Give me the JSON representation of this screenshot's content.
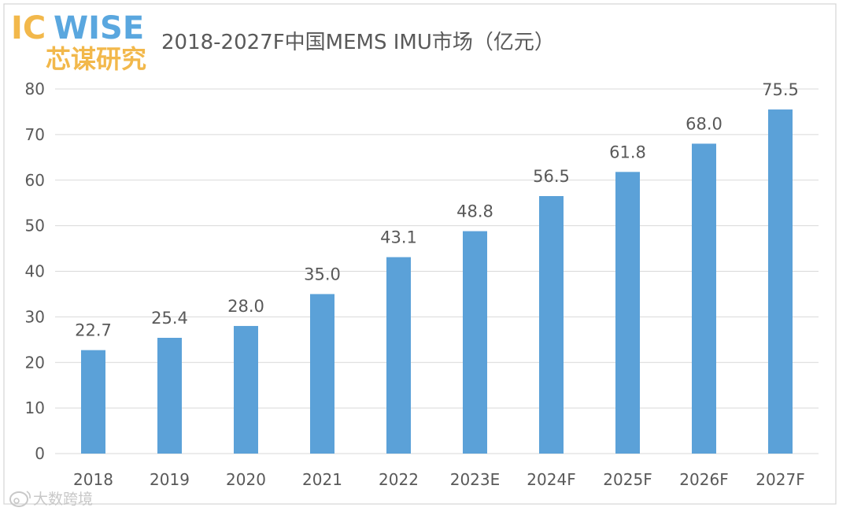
{
  "logo": {
    "ic": "IC",
    "wise": "WISE",
    "cn": "芯谋研究"
  },
  "watermark": {
    "text": "大数跨境"
  },
  "colors": {
    "bar": "#5ba1d8",
    "logo_gold": "#f2b84b",
    "logo_blue": "#5aa7df",
    "text": "#595959",
    "grid": "#d9d9d9"
  },
  "chart_data": {
    "type": "bar",
    "title": "2018-2027F中国MEMS IMU市场（亿元）",
    "xlabel": "",
    "ylabel": "",
    "categories": [
      "2018",
      "2019",
      "2020",
      "2021",
      "2022",
      "2023E",
      "2024F",
      "2025F",
      "2026F",
      "2027F"
    ],
    "values": [
      22.7,
      25.4,
      28.0,
      35.0,
      43.1,
      48.8,
      56.5,
      61.8,
      68.0,
      75.5
    ],
    "data_labels": [
      "22.7",
      "25.4",
      "28.0",
      "35.0",
      "43.1",
      "48.8",
      "56.5",
      "61.8",
      "68.0",
      "75.5"
    ],
    "yticks": [
      "0",
      "10",
      "20",
      "30",
      "40",
      "50",
      "60",
      "70",
      "80"
    ],
    "ylim": [
      0,
      80
    ],
    "grid": true,
    "legend": "none"
  }
}
